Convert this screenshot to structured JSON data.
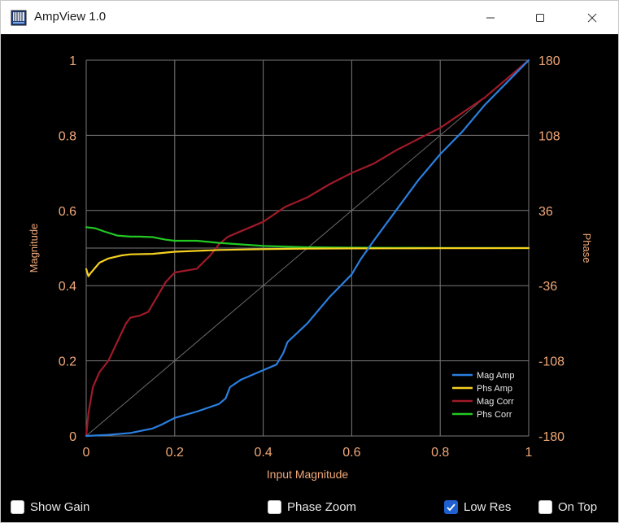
{
  "window": {
    "title": "AmpView 1.0",
    "icon": "app-chart-icon"
  },
  "controls": {
    "show_gain": {
      "label": "Show Gain",
      "checked": false
    },
    "phase_zoom": {
      "label": "Phase Zoom",
      "checked": false
    },
    "low_res": {
      "label": "Low Res",
      "checked": true
    },
    "on_top": {
      "label": "On Top",
      "checked": false
    }
  },
  "colors": {
    "background": "#000000",
    "grid": "#7a7a7a",
    "axis_text": "#f0a878",
    "mag_amp": "#2a7fe0",
    "phs_amp": "#f5d020",
    "mag_corr": "#a01a28",
    "phs_corr": "#22c822",
    "diagonal": "#6a6a6a",
    "checkbox_accent": "#1f5fd0"
  },
  "chart_data": {
    "type": "line",
    "xlabel": "Input Magnitude",
    "ylabel": "Magnitude",
    "y2label": "Phase",
    "xlim": [
      0,
      1
    ],
    "ylim": [
      0,
      1
    ],
    "y2lim": [
      -180,
      180
    ],
    "x_ticks": [
      "0",
      "0.2",
      "0.4",
      "0.6",
      "0.8",
      "1"
    ],
    "y_ticks": [
      "0",
      "0.2",
      "0.4",
      "0.6",
      "0.8",
      "1"
    ],
    "y2_ticks": [
      "-180",
      "-108",
      "-36",
      "36",
      "108",
      "180"
    ],
    "grid": true,
    "legend_position": "bottom-right",
    "series": [
      {
        "name": "Mag Amp",
        "axis": "left",
        "x": [
          0,
          0.05,
          0.1,
          0.15,
          0.17,
          0.2,
          0.25,
          0.3,
          0.315,
          0.325,
          0.35,
          0.4,
          0.43,
          0.445,
          0.455,
          0.5,
          0.55,
          0.6,
          0.62,
          0.65,
          0.7,
          0.75,
          0.8,
          0.85,
          0.9,
          0.95,
          1.0
        ],
        "y": [
          0,
          0.003,
          0.008,
          0.02,
          0.03,
          0.048,
          0.065,
          0.085,
          0.1,
          0.13,
          0.15,
          0.175,
          0.19,
          0.22,
          0.25,
          0.3,
          0.37,
          0.43,
          0.47,
          0.52,
          0.6,
          0.68,
          0.75,
          0.81,
          0.88,
          0.94,
          1.0
        ]
      },
      {
        "name": "Phs Amp",
        "axis": "right",
        "x": [
          0,
          0.005,
          0.01,
          0.03,
          0.05,
          0.08,
          0.1,
          0.15,
          0.2,
          0.3,
          0.4,
          0.5,
          0.6,
          0.7,
          0.8,
          0.9,
          1.0
        ],
        "y": [
          -20,
          -27,
          -24,
          -14,
          -10,
          -7,
          -6,
          -5.5,
          -3.5,
          -1.8,
          -1,
          -0.5,
          -0.3,
          -0.2,
          -0.1,
          -0.05,
          0
        ]
      },
      {
        "name": "Mag Corr",
        "axis": "left",
        "x": [
          0,
          0.005,
          0.015,
          0.03,
          0.05,
          0.07,
          0.09,
          0.1,
          0.12,
          0.14,
          0.16,
          0.18,
          0.2,
          0.25,
          0.28,
          0.3,
          0.32,
          0.35,
          0.4,
          0.45,
          0.5,
          0.55,
          0.6,
          0.65,
          0.7,
          0.75,
          0.8,
          0.85,
          0.9,
          0.95,
          1.0
        ],
        "y": [
          0,
          0.06,
          0.13,
          0.17,
          0.2,
          0.25,
          0.3,
          0.315,
          0.32,
          0.33,
          0.37,
          0.41,
          0.435,
          0.445,
          0.48,
          0.51,
          0.53,
          0.545,
          0.57,
          0.61,
          0.635,
          0.67,
          0.7,
          0.725,
          0.76,
          0.79,
          0.82,
          0.86,
          0.9,
          0.95,
          1.0
        ]
      },
      {
        "name": "Phs Corr",
        "axis": "right",
        "x": [
          0,
          0.02,
          0.04,
          0.07,
          0.1,
          0.12,
          0.15,
          0.18,
          0.2,
          0.25,
          0.3,
          0.4,
          0.5,
          0.6,
          0.7,
          0.8,
          0.9,
          1.0
        ],
        "y": [
          20,
          19,
          16,
          12,
          11,
          11,
          10.5,
          8,
          7,
          7,
          5,
          2,
          0.8,
          0.4,
          0.2,
          0.1,
          0.05,
          0
        ]
      }
    ]
  }
}
